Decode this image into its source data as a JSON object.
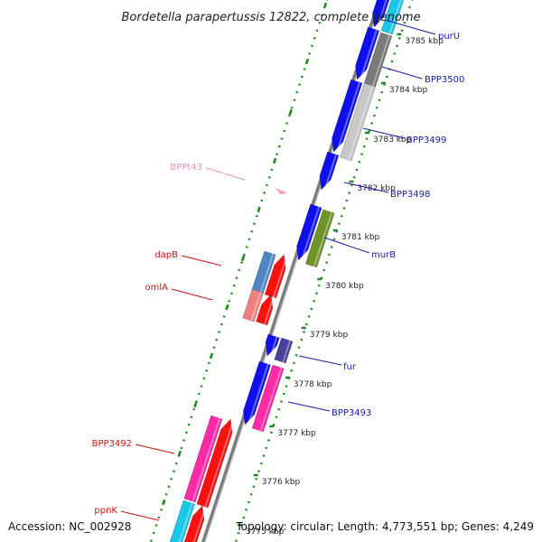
{
  "title": "Bordetella parapertussis 12822, complete genome",
  "accession": "Accession: NC_002928",
  "topology": "Topology: circular; Length: 4,773,551 bp; Genes: 4,249",
  "colors": {
    "forward_label": "#1a1aa6",
    "reverse_label": "#cc1111",
    "trna_label": "#e68fbf",
    "backbone": "#8a8a8a",
    "tick_dots": "#1f8a1f",
    "blue": "#1010ee",
    "red": "#ff1010",
    "magenta": "#ff2aa8",
    "cyan": "#19c7e6",
    "gray": "#7a7a7a",
    "lightgray": "#c8c8c8",
    "olive": "#6e9428",
    "steelblue": "#4e86c4",
    "salmon": "#f08080",
    "purple": "#4a3f9a"
  },
  "ticks": [
    "3785 kbp",
    "3784 kbp",
    "3783 kbp",
    "3782 kbp",
    "3781 kbp",
    "3780 kbp",
    "3779 kbp",
    "3778 kbp",
    "3777 kbp",
    "3776 kbp",
    "3775 kbp"
  ],
  "genes": [
    {
      "name": "purU",
      "strand": "forward",
      "color": "cyan"
    },
    {
      "name": "BPP3500",
      "strand": "forward",
      "color": "gray"
    },
    {
      "name": "BPP3499",
      "strand": "forward",
      "color": "lightgray"
    },
    {
      "name": "BPP3498",
      "strand": "forward",
      "color": "blue"
    },
    {
      "name": "murB",
      "strand": "forward",
      "color": "olive"
    },
    {
      "name": "fur",
      "strand": "forward",
      "color": "purple"
    },
    {
      "name": "BPP3493",
      "strand": "forward",
      "color": "magenta"
    },
    {
      "name": "BPPt43",
      "strand": "trna",
      "color": "trna"
    },
    {
      "name": "dapB",
      "strand": "reverse",
      "color": "steelblue"
    },
    {
      "name": "omlA",
      "strand": "reverse",
      "color": "salmon"
    },
    {
      "name": "BPP3492",
      "strand": "reverse",
      "color": "magenta"
    },
    {
      "name": "ppnK",
      "strand": "reverse",
      "color": "cyan"
    }
  ]
}
